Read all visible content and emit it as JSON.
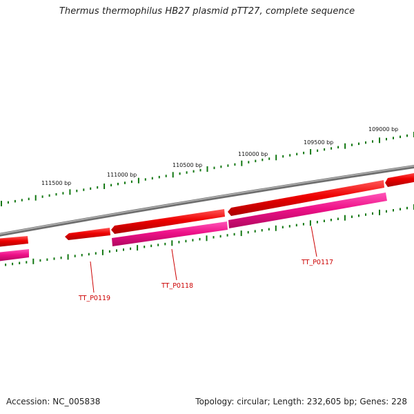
{
  "title": "Thermus thermophilus HB27 plasmid pTT27, complete sequence",
  "footer": {
    "accession": "Accession: NC_005838",
    "summary": "Topology: circular; Length: 232,605 bp; Genes: 228"
  },
  "colors": {
    "backbone": "#888888",
    "forward_gene": "#ee0000",
    "reverse_gene": "#ee1188",
    "tick": "#117711",
    "gene_label": "#cc0000"
  },
  "ruler": {
    "labels": [
      "111500 bp",
      "111000 bp",
      "110500 bp",
      "110000 bp",
      "109500 bp",
      "109000 bp"
    ]
  },
  "genes": [
    {
      "id": "TT_P0119",
      "strand": "forward"
    },
    {
      "id": "TT_P0118",
      "strand": "forward"
    },
    {
      "id": "TT_P0117",
      "strand": "forward"
    }
  ]
}
